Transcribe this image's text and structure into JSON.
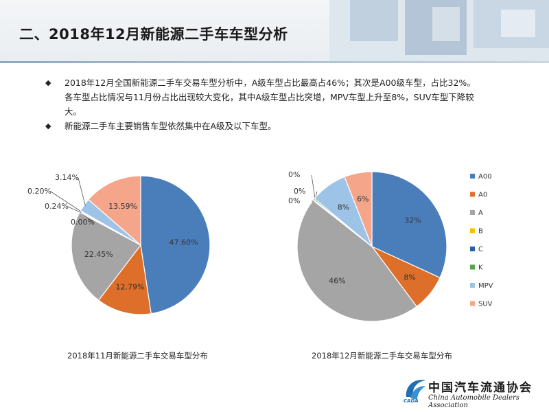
{
  "header": {
    "title": "二、2018年12月新能源二手车车型分析"
  },
  "bullets": [
    {
      "lines": [
        "2018年12月全国新能源二手车交易车型分析中，A级车型占比最高占46%；其次是A00级车型，占比32%。",
        "各车型占比情况与11月份占比出现较大变化，其中A级车型占比突增，MPV车型上升至8%，SUV车型下降较",
        "大。"
      ]
    },
    {
      "lines": [
        "新能源二手车主要销售车型依然集中在A级及以下车型。"
      ]
    }
  ],
  "colors": {
    "A00": "#4a7ebb",
    "A0": "#dd6f2a",
    "A": "#a5a5a5",
    "B": "#f2c200",
    "C": "#2a5ea8",
    "K": "#5aa448",
    "MPV": "#9dc3e6",
    "SUV": "#f4a58a"
  },
  "chart_data": [
    {
      "type": "pie",
      "title": "2018年11月新能源二手车交易车型分布",
      "categories": [
        "A00",
        "A0",
        "A",
        "B",
        "C",
        "K",
        "MPV",
        "SUV"
      ],
      "values": [
        47.6,
        12.79,
        22.45,
        0.0,
        0.24,
        0.2,
        3.14,
        13.59
      ],
      "labels": [
        "47.60%",
        "12.79%",
        "22.45%",
        "0.00%",
        "0.24%",
        "0.20%",
        "3.14%",
        "13.59%"
      ],
      "legend": "none"
    },
    {
      "type": "pie",
      "title": "2018年12月新能源二手车交易车型分布",
      "categories": [
        "A00",
        "A0",
        "A",
        "B",
        "C",
        "K",
        "MPV",
        "SUV"
      ],
      "values": [
        32,
        8,
        46,
        0.1,
        0.1,
        0.3,
        8,
        6
      ],
      "labels": [
        "32%",
        "8%",
        "46%",
        "0%",
        "0%",
        "0%",
        "8%",
        "6%"
      ],
      "legend": "right"
    }
  ],
  "logo": {
    "cn": "中国汽车流通协会",
    "en": "China Automobile Dealers Association",
    "abbr": "CADA"
  }
}
